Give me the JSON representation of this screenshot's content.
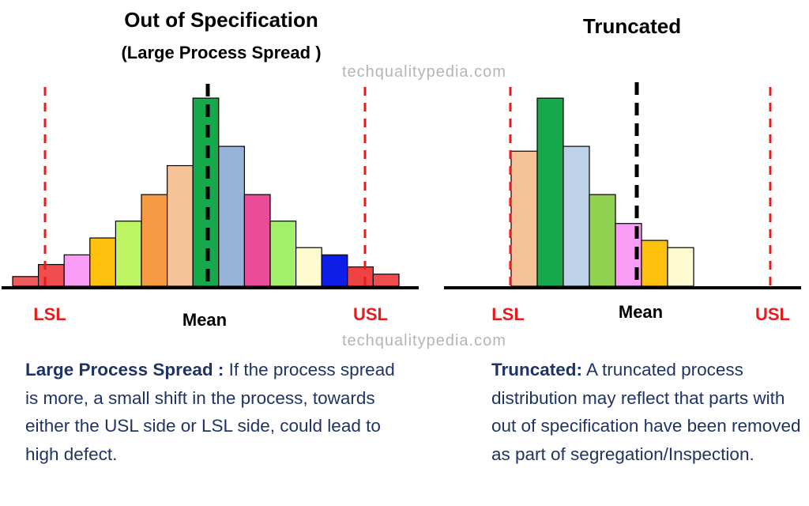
{
  "watermark": "techqualitypedia.com",
  "chart_data": [
    {
      "type": "bar",
      "title": "Out of Specification",
      "subtitle": "(Large Process Spread )",
      "values": [
        2,
        4.5,
        6.5,
        10,
        13.5,
        19,
        25,
        39,
        29,
        19,
        13.5,
        8,
        6.5,
        4,
        2.5
      ],
      "colors": [
        "#ef5b5b",
        "#f04e4e",
        "#fa9cf5",
        "#fec20e",
        "#bef565",
        "#f79a44",
        "#f6c297",
        "#16a94c",
        "#97b4d8",
        "#ea4c9a",
        "#a2ef6a",
        "#fefbd0",
        "#0d1ee6",
        "#ef4343",
        "#f04e4e"
      ],
      "ylim": [
        0,
        40
      ],
      "markers": {
        "LSL": "LSL",
        "Mean": "Mean",
        "USL": "USL"
      }
    },
    {
      "type": "bar",
      "title": "Truncated",
      "values": [
        28,
        39,
        29,
        19,
        13,
        9.5,
        8
      ],
      "colors": [
        "#f6c297",
        "#16a94c",
        "#bdd1e8",
        "#91d150",
        "#fa9cf5",
        "#fec20e",
        "#fefbd0"
      ],
      "ylim": [
        0,
        40
      ],
      "markers": {
        "LSL": "LSL",
        "Mean": "Mean",
        "USL": "USL"
      }
    }
  ],
  "descriptions": [
    {
      "heading": "Large Process Spread :",
      "text": " If the process spread is more, a small shift in the process, towards either the USL side or LSL side, could lead to high defect."
    },
    {
      "heading": "Truncated:",
      "text": " A truncated process distribution may reflect that parts with out of specification have been removed as part of segregation/Inspection."
    }
  ],
  "palette": {
    "spec_limit": "#e11d1d",
    "mean_line": "#000000",
    "text_dark_blue": "#1f3464",
    "watermark": "#b5b5b5"
  }
}
